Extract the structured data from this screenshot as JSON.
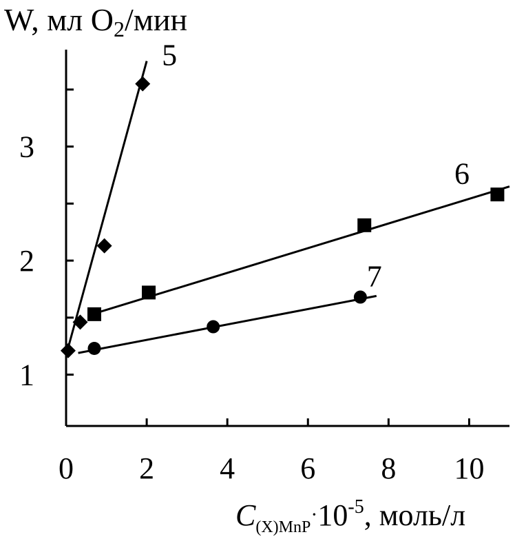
{
  "chart_data": {
    "type": "scatter",
    "title": "",
    "ylabel": {
      "main": "W, мл O",
      "sub": "2",
      "tail": "/мин"
    },
    "xlabel": {
      "var": "C",
      "sub": "(X)MnP",
      "dot": "·",
      "mult": "10",
      "exp": "-5",
      "tail": ", моль/л"
    },
    "xlim": [
      0,
      11
    ],
    "ylim": [
      0.55,
      3.85
    ],
    "x_ticks": [
      0,
      2,
      4,
      6,
      8,
      10
    ],
    "x_tick_labels": [
      "0",
      "2",
      "4",
      "6",
      "8",
      "10"
    ],
    "y_ticks": [
      1,
      1.5,
      2,
      2.5,
      3,
      3.5
    ],
    "y_tick_labels": [
      "1",
      "",
      "2",
      "",
      "3",
      ""
    ],
    "grid": false,
    "legend": "none",
    "series": [
      {
        "name": "5",
        "marker": "diamond",
        "points": [
          [
            0.05,
            1.21
          ],
          [
            0.35,
            1.46
          ],
          [
            0.95,
            2.13
          ],
          [
            1.9,
            3.55
          ]
        ],
        "fit": [
          [
            0.0,
            1.17
          ],
          [
            2.0,
            3.75
          ]
        ]
      },
      {
        "name": "6",
        "marker": "square",
        "points": [
          [
            0.7,
            1.53
          ],
          [
            2.05,
            1.72
          ],
          [
            7.4,
            2.31
          ],
          [
            10.7,
            2.58
          ]
        ],
        "fit": [
          [
            0.65,
            1.53
          ],
          [
            11.0,
            2.65
          ]
        ]
      },
      {
        "name": "7",
        "marker": "circle",
        "points": [
          [
            0.7,
            1.23
          ],
          [
            3.65,
            1.42
          ],
          [
            7.3,
            1.68
          ]
        ],
        "fit": [
          [
            0.3,
            1.19
          ],
          [
            7.7,
            1.69
          ]
        ]
      }
    ]
  }
}
